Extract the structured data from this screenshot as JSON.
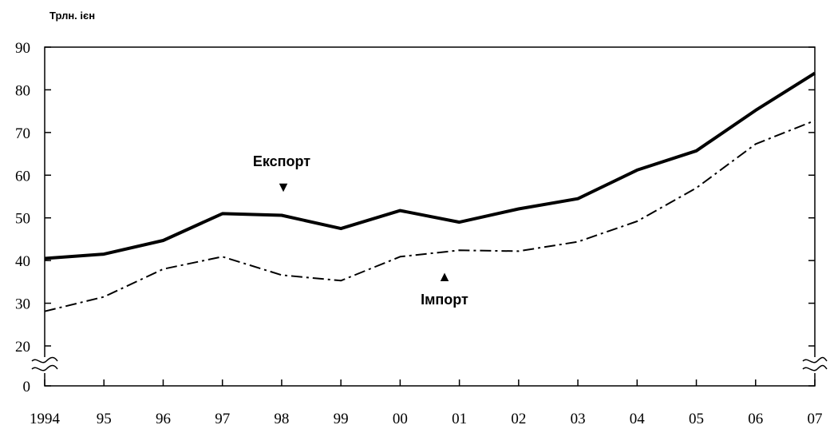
{
  "chart_data": {
    "type": "line",
    "unit_label": "Трлн. ієн",
    "categories": [
      "1994",
      "95",
      "96",
      "97",
      "98",
      "99",
      "00",
      "01",
      "02",
      "03",
      "04",
      "05",
      "06",
      "07"
    ],
    "yticks": [
      "90",
      "80",
      "70",
      "60",
      "50",
      "40",
      "30",
      "20",
      "0"
    ],
    "ylim": [
      0,
      90
    ],
    "axis_break": true,
    "grid": false,
    "series": [
      {
        "name": "Експорт",
        "style": "solid",
        "color": "#000000",
        "values": [
          40.5,
          41.5,
          44.7,
          51.0,
          50.6,
          47.5,
          51.7,
          49.0,
          52.1,
          54.5,
          61.2,
          65.7,
          75.2,
          83.9
        ]
      },
      {
        "name": "Імпорт",
        "style": "dash-dot",
        "color": "#000000",
        "values": [
          28.1,
          31.5,
          38.0,
          40.9,
          36.6,
          35.3,
          40.9,
          42.4,
          42.2,
          44.4,
          49.2,
          57.0,
          67.3,
          72.8
        ]
      }
    ],
    "annotations": [
      {
        "text": "Експорт",
        "marker": "▼",
        "target": "Експорт"
      },
      {
        "text": "Імпорт",
        "marker": "▲",
        "target": "Імпорт"
      }
    ]
  }
}
